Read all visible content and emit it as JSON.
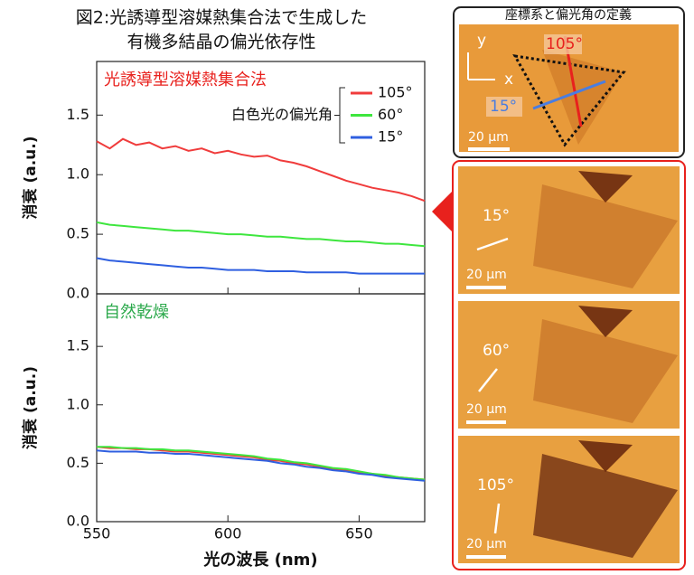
{
  "chart_data": [
    {
      "type": "line",
      "title": [
        "図2:光誘導型溶媒熱集合法で生成した",
        "有機多結晶の偏光依存性"
      ],
      "ylabel": "消衰 (a.u.)",
      "annotation": "光誘導型溶媒熱集合法",
      "annotation_color": "#e8211d",
      "legend": {
        "title": "白色光の偏光角"
      },
      "x": [
        550,
        555,
        560,
        565,
        570,
        575,
        580,
        585,
        590,
        595,
        600,
        605,
        610,
        615,
        620,
        625,
        630,
        635,
        640,
        645,
        650,
        655,
        660,
        665,
        670,
        675
      ],
      "xlim": [
        550,
        675
      ],
      "xticks": [
        550,
        600,
        650
      ],
      "ylim": [
        0,
        1.95
      ],
      "yticks": [
        {
          "value": 0,
          "label": "0.0"
        },
        0.5,
        {
          "value": 1,
          "label": "1.0"
        },
        1.5
      ],
      "series": [
        {
          "name": "105°",
          "color": "#f03c3c",
          "values": [
            1.28,
            1.22,
            1.3,
            1.25,
            1.27,
            1.22,
            1.24,
            1.2,
            1.22,
            1.18,
            1.2,
            1.17,
            1.15,
            1.16,
            1.12,
            1.1,
            1.07,
            1.03,
            0.99,
            0.95,
            0.92,
            0.89,
            0.87,
            0.85,
            0.82,
            0.78
          ]
        },
        {
          "name": "60°",
          "color": "#3ee63e",
          "values": [
            0.6,
            0.58,
            0.57,
            0.56,
            0.55,
            0.54,
            0.53,
            0.53,
            0.52,
            0.51,
            0.5,
            0.5,
            0.49,
            0.48,
            0.48,
            0.47,
            0.46,
            0.46,
            0.45,
            0.44,
            0.44,
            0.43,
            0.42,
            0.42,
            0.41,
            0.4
          ]
        },
        {
          "name": "15°",
          "color": "#2f5fe0",
          "values": [
            0.3,
            0.28,
            0.27,
            0.26,
            0.25,
            0.24,
            0.23,
            0.22,
            0.22,
            0.21,
            0.2,
            0.2,
            0.2,
            0.19,
            0.19,
            0.19,
            0.18,
            0.18,
            0.18,
            0.18,
            0.17,
            0.17,
            0.17,
            0.17,
            0.17,
            0.17
          ]
        }
      ]
    },
    {
      "type": "line",
      "ylabel": "消衰 (a.u.)",
      "xlabel": "光の波長 (nm)",
      "annotation": "自然乾燥",
      "annotation_color": "#2aa84a",
      "x": [
        550,
        555,
        560,
        565,
        570,
        575,
        580,
        585,
        590,
        595,
        600,
        605,
        610,
        615,
        620,
        625,
        630,
        635,
        640,
        645,
        650,
        655,
        660,
        665,
        670,
        675
      ],
      "xlim": [
        550,
        675
      ],
      "xticks": [
        550,
        600,
        650
      ],
      "ylim": [
        0,
        1.95
      ],
      "yticks": [
        {
          "value": 0,
          "label": "0.0"
        },
        0.5,
        {
          "value": 1,
          "label": "1.0"
        },
        1.5
      ],
      "series": [
        {
          "color": "#f03c3c",
          "values": [
            0.64,
            0.63,
            0.63,
            0.62,
            0.62,
            0.61,
            0.6,
            0.6,
            0.59,
            0.58,
            0.57,
            0.56,
            0.55,
            0.53,
            0.52,
            0.5,
            0.49,
            0.47,
            0.45,
            0.44,
            0.42,
            0.41,
            0.39,
            0.38,
            0.37,
            0.36
          ]
        },
        {
          "color": "#3ee63e",
          "values": [
            0.64,
            0.64,
            0.63,
            0.63,
            0.62,
            0.62,
            0.61,
            0.61,
            0.6,
            0.59,
            0.58,
            0.57,
            0.56,
            0.54,
            0.53,
            0.51,
            0.5,
            0.48,
            0.46,
            0.45,
            0.43,
            0.41,
            0.4,
            0.38,
            0.37,
            0.36
          ]
        },
        {
          "color": "#2f5fe0",
          "values": [
            0.61,
            0.6,
            0.6,
            0.6,
            0.59,
            0.59,
            0.58,
            0.58,
            0.57,
            0.56,
            0.55,
            0.54,
            0.53,
            0.52,
            0.5,
            0.49,
            0.47,
            0.46,
            0.44,
            0.43,
            0.41,
            0.4,
            0.38,
            0.37,
            0.36,
            0.35
          ]
        }
      ]
    }
  ],
  "micrographs": {
    "definition": {
      "title": "座標系と偏光角の定義",
      "axis_y": "y",
      "axis_x": "x",
      "angle_a": "105°",
      "angle_b": "15°",
      "scale": "20 μm"
    },
    "panels": [
      {
        "angle": "15°",
        "scale": "20 μm"
      },
      {
        "angle": "60°",
        "scale": "20 μm"
      },
      {
        "angle": "105°",
        "scale": "20 μm"
      }
    ]
  }
}
